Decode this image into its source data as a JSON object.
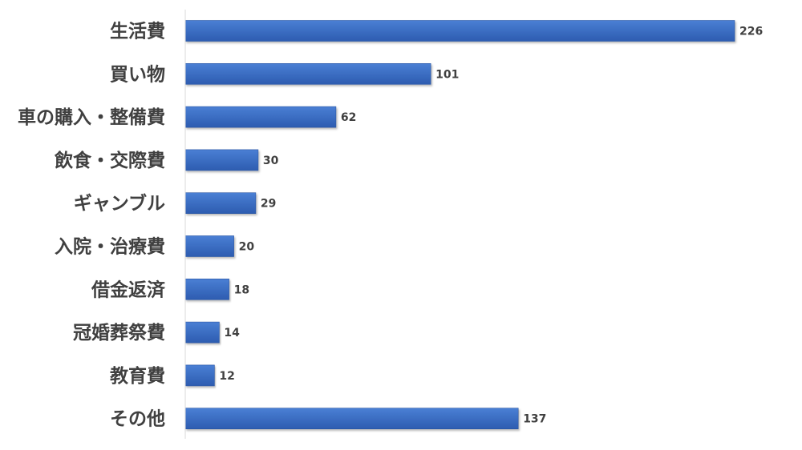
{
  "chart_data": {
    "type": "bar",
    "orientation": "horizontal",
    "categories": [
      "生活費",
      "買い物",
      "車の購入・整備費",
      "飲食・交際費",
      "ギャンブル",
      "入院・治療費",
      "借金返済",
      "冠婚葬祭費",
      "教育費",
      "その他"
    ],
    "values": [
      226,
      101,
      62,
      30,
      29,
      20,
      18,
      14,
      12,
      137
    ],
    "title": "",
    "xlabel": "",
    "ylabel": "",
    "data_labels": true,
    "grid": false,
    "legend": "none",
    "colors": {
      "bar_top": "#4a7fd4",
      "bar_bottom": "#2d5cb0",
      "bar_stroke": "#2a55a3",
      "axis": "#d9d9d9",
      "text": "#404040"
    }
  }
}
